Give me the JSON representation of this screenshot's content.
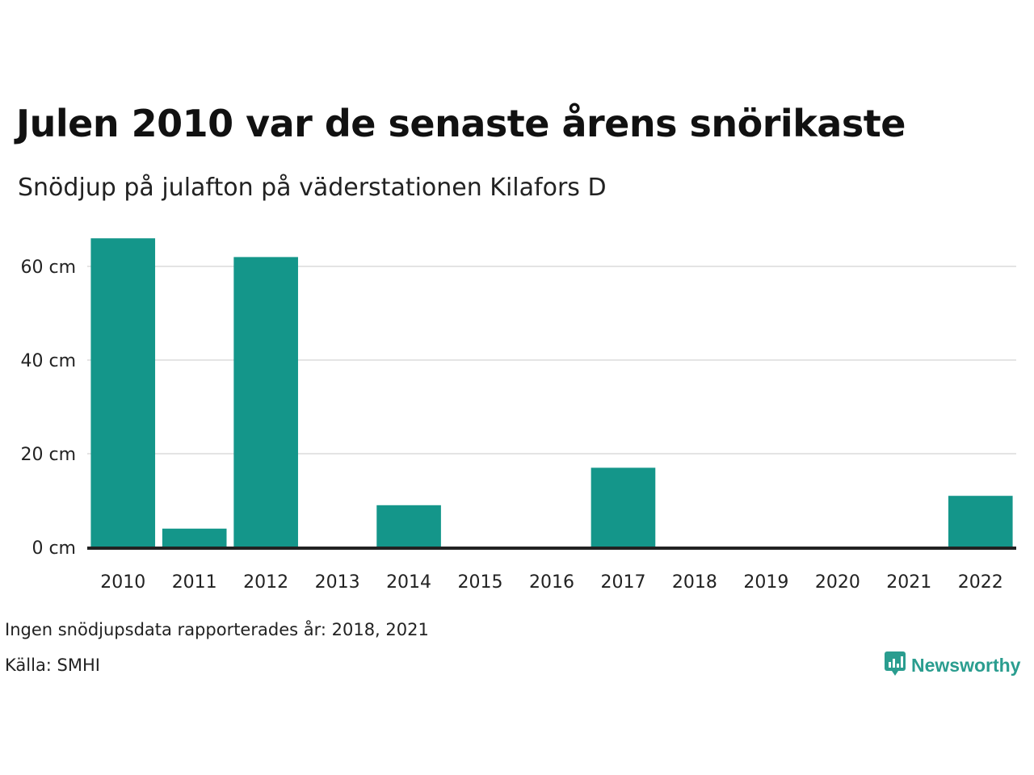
{
  "header": {
    "title": "Julen 2010 var de senaste årens snörikaste",
    "subtitle": "Snödjup på julafton på väderstationen Kilafors D"
  },
  "footer": {
    "note": "Ingen snödjupsdata rapporterades år: 2018, 2021",
    "source": "Källa: SMHI",
    "brand": "Newsworthy",
    "brand_icon": "bar-chart-speech-bubble-icon"
  },
  "colors": {
    "bar": "#14968a",
    "grid": "#e4e4e4",
    "baseline": "#222222",
    "brand": "#2a9d8f"
  },
  "chart_data": {
    "type": "bar",
    "categories": [
      "2010",
      "2011",
      "2012",
      "2013",
      "2014",
      "2015",
      "2016",
      "2017",
      "2018",
      "2019",
      "2020",
      "2021",
      "2022"
    ],
    "values": [
      66,
      4,
      62,
      0,
      9,
      0,
      0,
      17,
      0,
      0,
      0,
      0,
      11
    ],
    "yticks": [
      0,
      20,
      40,
      60
    ],
    "ytick_labels": [
      "0 cm",
      "20 cm",
      "40 cm",
      "60 cm"
    ],
    "ylim": [
      0,
      70
    ],
    "grid": true,
    "legend": "none"
  }
}
